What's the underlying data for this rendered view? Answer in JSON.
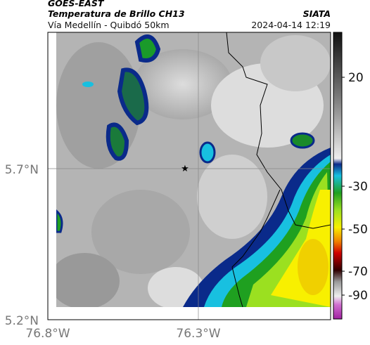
{
  "header": {
    "satellite": "GOES-EAST",
    "product": "Temperatura de Brillo CH13",
    "agency": "SIATA",
    "route": "Vía Medellín - Quibdó 50km",
    "timestamp": "2024-04-14 12:19"
  },
  "map": {
    "lat_labels": [
      "5.7°N",
      "5.2°N"
    ],
    "lon_labels": [
      "76.8°W",
      "76.3°W"
    ]
  },
  "colorbar": {
    "ticks": [
      20,
      -30,
      -50,
      -70,
      -90
    ]
  }
}
